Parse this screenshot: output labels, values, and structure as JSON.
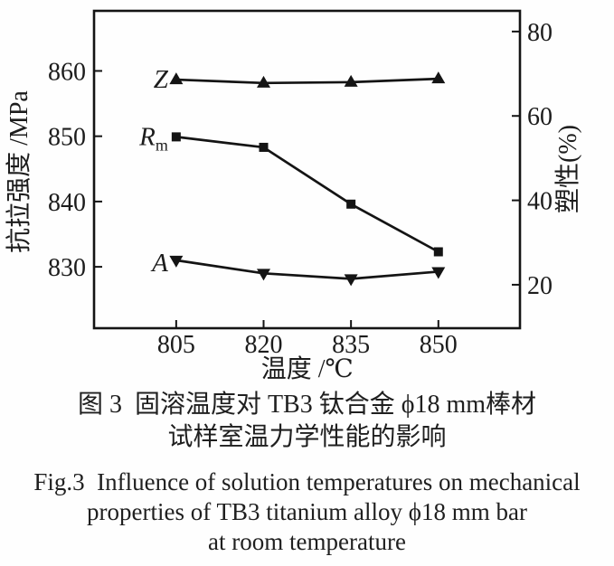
{
  "figure": {
    "caption_cn": [
      "图 3  固溶温度对 TB3 钛合金 ϕ18 mm棒材",
      "试样室温力学性能的影响"
    ],
    "caption_en": [
      "Fig.3  Influence of solution temperatures on mechanical",
      "properties of TB3 titanium alloy ϕ18 mm bar",
      "at room temperature"
    ]
  },
  "chart_data": {
    "type": "line",
    "title": "",
    "xlabel": "温度 /℃",
    "ylabel_left": "抗拉强度 /MPa",
    "ylabel_right": "塑性(%)",
    "x": [
      805,
      820,
      835,
      850
    ],
    "x_ticks": [
      805,
      820,
      835,
      850
    ],
    "left_ticks": [
      830,
      840,
      850,
      860
    ],
    "right_ticks": [
      20,
      40,
      60,
      80
    ],
    "xlim": [
      790.9,
      864.0
    ],
    "ylim_left": [
      820.6,
      869.2
    ],
    "ylim_right": [
      9.7,
      84.9
    ],
    "grid": false,
    "legend_position": "inline-left-of-first-point",
    "line_color": "#141414",
    "series": [
      {
        "name": "Z",
        "label": "Z",
        "label_sub": "",
        "axis": "right",
        "marker": "triangle-up",
        "values": [
          68.6,
          67.8,
          68.0,
          68.8
        ]
      },
      {
        "name": "Rm",
        "label": "R",
        "label_sub": "m",
        "axis": "left",
        "marker": "square",
        "values": [
          849.9,
          848.3,
          839.6,
          832.3
        ]
      },
      {
        "name": "A",
        "label": "A",
        "label_sub": "",
        "axis": "right",
        "marker": "triangle-down",
        "values": [
          25.8,
          22.7,
          21.4,
          23.1
        ]
      }
    ]
  }
}
